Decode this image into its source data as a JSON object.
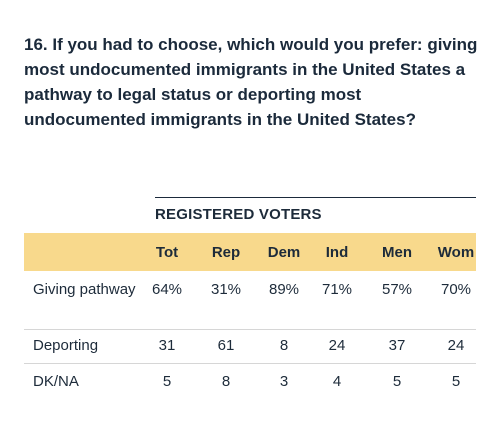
{
  "question": "16. If you had to choose, which would you prefer: giving most undocumented immigrants in the United States a pathway to legal status or deporting most undocumented immigrants in the United States?",
  "table": {
    "group_label": "REGISTERED VOTERS",
    "columns": [
      "Tot",
      "Rep",
      "Dem",
      "Ind",
      "Men",
      "Wom"
    ],
    "rows": [
      {
        "label": "Giving pathway",
        "values": [
          "64%",
          "31%",
          "89%",
          "71%",
          "57%",
          "70%"
        ]
      },
      {
        "label": "Deporting",
        "values": [
          "31",
          "61",
          "8",
          "24",
          "37",
          "24"
        ]
      },
      {
        "label": "DK/NA",
        "values": [
          "5",
          "8",
          "3",
          "4",
          "5",
          "5"
        ]
      }
    ]
  }
}
